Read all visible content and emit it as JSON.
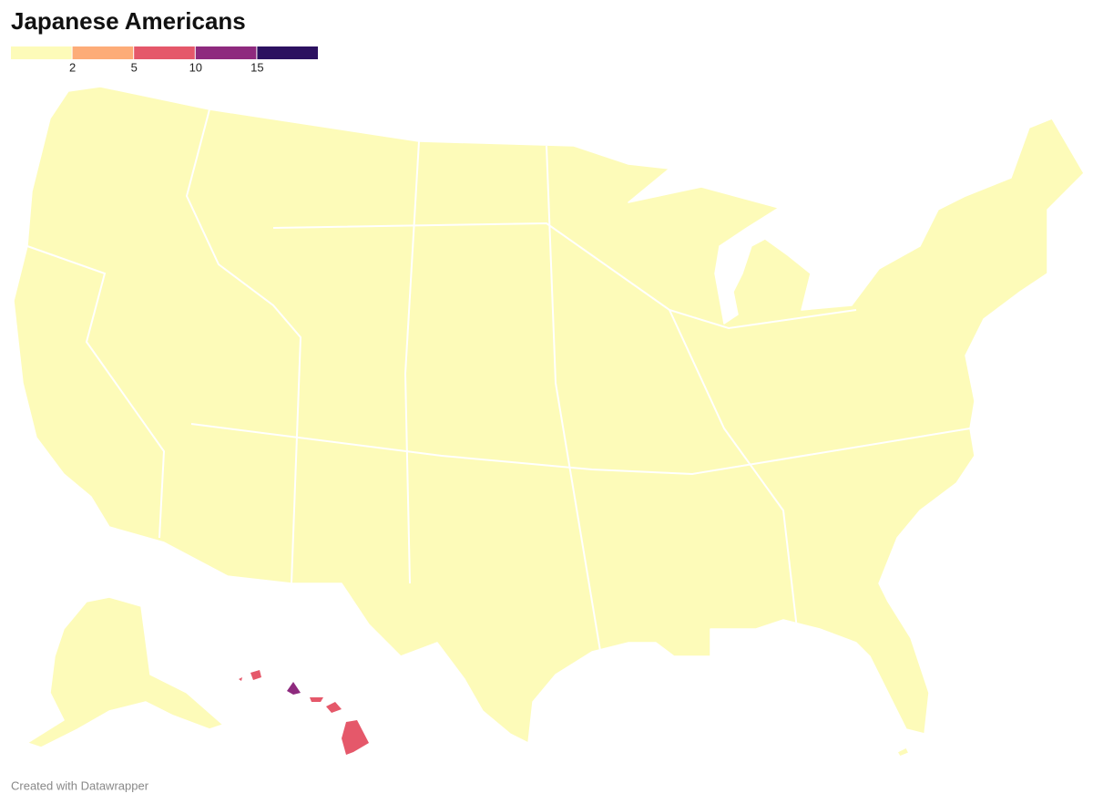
{
  "title": "Japanese Americans",
  "legend": {
    "colors": [
      "#fdfbb9",
      "#fdac78",
      "#e5586a",
      "#8e2a7e",
      "#2c1160"
    ],
    "ticks": [
      2,
      5,
      10,
      15
    ]
  },
  "footer": "Created with Datawrapper"
}
